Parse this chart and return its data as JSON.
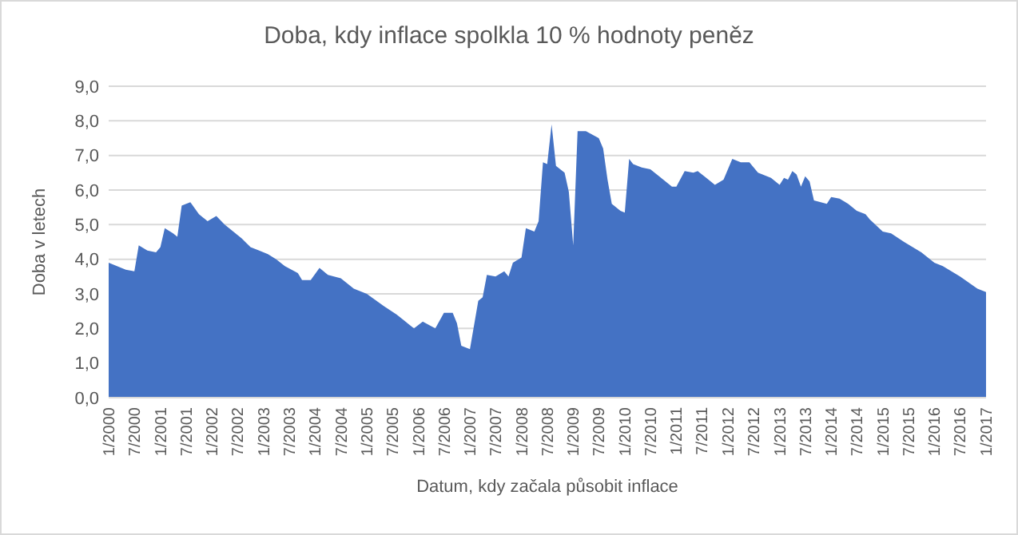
{
  "chart_data": {
    "type": "area",
    "title": "Doba, kdy inflace spolkla 10 % hodnoty peněz",
    "xlabel": "Datum, kdy začala působit inflace",
    "ylabel": "Doba v letech",
    "color": "#4472c4",
    "grid": "y",
    "x": [
      "2000-01",
      "2000-05",
      "2000-07",
      "2000-08",
      "2000-10",
      "2000-12",
      "2001-01",
      "2001-02",
      "2001-04",
      "2001-05",
      "2001-06",
      "2001-08",
      "2001-10",
      "2001-12",
      "2002-02",
      "2002-04",
      "2002-06",
      "2002-08",
      "2002-10",
      "2002-12",
      "2003-02",
      "2003-04",
      "2003-06",
      "2003-09",
      "2003-10",
      "2003-12",
      "2004-02",
      "2004-04",
      "2004-07",
      "2004-09",
      "2004-10",
      "2005-01",
      "2005-05",
      "2005-08",
      "2005-12",
      "2006-02",
      "2006-05",
      "2006-07",
      "2006-09",
      "2006-10",
      "2006-11",
      "2007-01",
      "2007-03",
      "2007-04",
      "2007-05",
      "2007-07",
      "2007-09",
      "2007-10",
      "2007-11",
      "2008-01",
      "2008-02",
      "2008-04",
      "2008-05",
      "2008-06",
      "2008-07",
      "2008-08",
      "2008-09",
      "2008-11",
      "2008-12",
      "2009-01",
      "2009-02",
      "2009-04",
      "2009-07",
      "2009-08",
      "2009-09",
      "2009-10",
      "2009-12",
      "2010-01",
      "2010-02",
      "2010-03",
      "2010-05",
      "2010-07",
      "2010-09",
      "2010-12",
      "2011-01",
      "2011-03",
      "2011-05",
      "2011-06",
      "2011-08",
      "2011-10",
      "2011-12",
      "2012-02",
      "2012-04",
      "2012-06",
      "2012-08",
      "2012-11",
      "2013-01",
      "2013-02",
      "2013-03",
      "2013-04",
      "2013-05",
      "2013-06",
      "2013-07",
      "2013-08",
      "2013-09",
      "2013-12",
      "2014-01",
      "2014-03",
      "2014-05",
      "2014-07",
      "2014-09",
      "2014-10",
      "2015-01",
      "2015-03",
      "2015-06",
      "2015-10",
      "2016-01",
      "2016-03",
      "2016-07",
      "2016-11",
      "2017-01"
    ],
    "values": [
      3.9,
      3.7,
      3.65,
      4.4,
      4.25,
      4.2,
      4.35,
      4.9,
      4.75,
      4.65,
      5.55,
      5.65,
      5.3,
      5.1,
      5.25,
      5.0,
      4.8,
      4.6,
      4.35,
      4.25,
      4.15,
      4.0,
      3.8,
      3.6,
      3.4,
      3.4,
      3.75,
      3.55,
      3.45,
      3.25,
      3.15,
      3.0,
      2.65,
      2.4,
      2.0,
      2.2,
      2.0,
      2.45,
      2.45,
      2.15,
      1.5,
      1.4,
      2.8,
      2.9,
      3.55,
      3.5,
      3.65,
      3.5,
      3.9,
      4.05,
      4.9,
      4.8,
      5.1,
      6.8,
      6.75,
      7.9,
      6.7,
      6.5,
      5.95,
      4.4,
      7.7,
      7.7,
      7.5,
      7.2,
      6.3,
      5.6,
      5.4,
      5.35,
      6.9,
      6.75,
      6.65,
      6.6,
      6.4,
      6.1,
      6.1,
      6.55,
      6.5,
      6.55,
      6.35,
      6.15,
      6.3,
      6.9,
      6.8,
      6.8,
      6.5,
      6.35,
      6.15,
      6.35,
      6.3,
      6.55,
      6.45,
      6.1,
      6.4,
      6.25,
      5.7,
      5.6,
      5.8,
      5.75,
      5.6,
      5.4,
      5.3,
      5.15,
      4.8,
      4.75,
      4.5,
      4.2,
      3.9,
      3.8,
      3.5,
      3.15,
      3.05
    ],
    "xlim": [
      "2000-01",
      "2017-01"
    ],
    "xticks": [
      {
        "value": "2000-01",
        "label": "1/2000"
      },
      {
        "value": "2000-07",
        "label": "7/2000"
      },
      {
        "value": "2001-01",
        "label": "1/2001"
      },
      {
        "value": "2001-07",
        "label": "7/2001"
      },
      {
        "value": "2002-01",
        "label": "1/2002"
      },
      {
        "value": "2002-07",
        "label": "7/2002"
      },
      {
        "value": "2003-01",
        "label": "1/2003"
      },
      {
        "value": "2003-07",
        "label": "7/2003"
      },
      {
        "value": "2004-01",
        "label": "1/2004"
      },
      {
        "value": "2004-07",
        "label": "7/2004"
      },
      {
        "value": "2005-01",
        "label": "1/2005"
      },
      {
        "value": "2005-07",
        "label": "7/2005"
      },
      {
        "value": "2006-01",
        "label": "1/2006"
      },
      {
        "value": "2006-07",
        "label": "7/2006"
      },
      {
        "value": "2007-01",
        "label": "1/2007"
      },
      {
        "value": "2007-07",
        "label": "7/2007"
      },
      {
        "value": "2008-01",
        "label": "1/2008"
      },
      {
        "value": "2008-07",
        "label": "7/2008"
      },
      {
        "value": "2009-01",
        "label": "1/2009"
      },
      {
        "value": "2009-07",
        "label": "7/2009"
      },
      {
        "value": "2010-01",
        "label": "1/2010"
      },
      {
        "value": "2010-07",
        "label": "7/2010"
      },
      {
        "value": "2011-01",
        "label": "1/2011"
      },
      {
        "value": "2011-07",
        "label": "7/2011"
      },
      {
        "value": "2012-01",
        "label": "1/2012"
      },
      {
        "value": "2012-07",
        "label": "7/2012"
      },
      {
        "value": "2013-01",
        "label": "1/2013"
      },
      {
        "value": "2013-07",
        "label": "7/2013"
      },
      {
        "value": "2014-01",
        "label": "1/2014"
      },
      {
        "value": "2014-07",
        "label": "7/2014"
      },
      {
        "value": "2015-01",
        "label": "1/2015"
      },
      {
        "value": "2015-07",
        "label": "7/2015"
      },
      {
        "value": "2016-01",
        "label": "1/2016"
      },
      {
        "value": "2016-07",
        "label": "7/2016"
      },
      {
        "value": "2017-01",
        "label": "1/2017"
      }
    ],
    "ylim": [
      0,
      9
    ],
    "yticks": [
      {
        "value": 0,
        "label": "0,0"
      },
      {
        "value": 1,
        "label": "1,0"
      },
      {
        "value": 2,
        "label": "2,0"
      },
      {
        "value": 3,
        "label": "3,0"
      },
      {
        "value": 4,
        "label": "4,0"
      },
      {
        "value": 5,
        "label": "5,0"
      },
      {
        "value": 6,
        "label": "6,0"
      },
      {
        "value": 7,
        "label": "7,0"
      },
      {
        "value": 8,
        "label": "8,0"
      },
      {
        "value": 9,
        "label": "9,0"
      }
    ]
  }
}
